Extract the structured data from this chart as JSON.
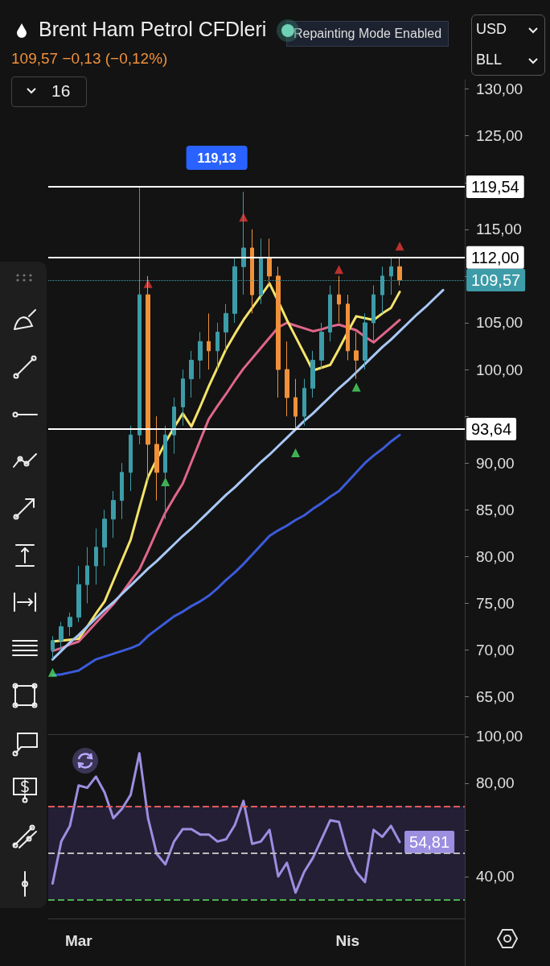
{
  "chart_data": [
    {
      "type": "candlestick",
      "title": "Brent Ham Petrol CFDleri",
      "subtitle": "109,57 −0,13 (−0,12%)",
      "annotations": [
        "Repainting Mode Enabled",
        "16",
        "USD",
        "BLL",
        {
          "text": "119,13",
          "y": 119.54
        }
      ],
      "ohlc": [
        [
          70,
          71.5,
          69,
          71
        ],
        [
          71,
          73,
          70,
          72.5
        ],
        [
          72.5,
          74,
          71.5,
          73.5
        ],
        [
          73.5,
          79,
          73,
          77
        ],
        [
          77,
          81,
          75,
          79
        ],
        [
          79,
          83,
          77,
          81
        ],
        [
          81,
          85,
          79,
          84
        ],
        [
          84,
          87,
          82,
          86
        ],
        [
          86,
          90,
          84,
          89
        ],
        [
          89,
          94,
          87,
          93
        ],
        [
          93,
          119.5,
          92,
          108
        ],
        [
          108,
          110,
          88,
          92
        ],
        [
          92,
          95,
          86,
          89
        ],
        [
          89,
          94,
          84,
          93
        ],
        [
          93,
          97,
          91,
          96
        ],
        [
          96,
          100,
          94,
          99
        ],
        [
          99,
          102,
          97,
          101
        ],
        [
          101,
          104,
          99,
          103
        ],
        [
          103,
          106,
          100,
          102
        ],
        [
          102,
          105,
          100,
          104
        ],
        [
          104,
          107,
          102,
          106
        ],
        [
          106,
          112,
          105,
          111
        ],
        [
          111,
          119,
          108,
          113
        ],
        [
          113,
          115,
          106,
          108
        ],
        [
          108,
          114,
          107,
          112
        ],
        [
          112,
          114,
          109,
          110
        ],
        [
          110,
          111,
          97,
          100
        ],
        [
          100,
          103,
          95,
          97
        ],
        [
          97,
          99,
          93.6,
          95
        ],
        [
          95,
          99,
          94,
          98
        ],
        [
          98,
          102,
          97,
          101
        ],
        [
          101,
          105,
          100,
          104
        ],
        [
          104,
          109,
          103,
          108
        ],
        [
          108,
          110,
          105,
          107
        ],
        [
          107,
          108,
          101,
          102
        ],
        [
          102,
          104,
          99,
          101
        ],
        [
          101,
          106,
          100,
          105
        ],
        [
          105,
          109,
          103,
          108
        ],
        [
          108,
          111,
          106,
          110
        ],
        [
          110,
          112,
          108,
          111
        ],
        [
          111,
          112,
          109,
          109.57
        ],
        null,
        null,
        null,
        null,
        null,
        null,
        null
      ],
      "colors": [
        "#3d9ca8",
        "#3d9ca8",
        "#3d9ca8",
        "#3d9ca8",
        "#3d9ca8",
        "#3d9ca8",
        "#3d9ca8",
        "#3d9ca8",
        "#3d9ca8",
        "#3d9ca8",
        "#3d9ca8",
        "#f0913a",
        "#f0913a",
        "#3d9ca8",
        "#3d9ca8",
        "#3d9ca8",
        "#3d9ca8",
        "#3d9ca8",
        "#f0913a",
        "#3d9ca8",
        "#3d9ca8",
        "#3d9ca8",
        "#3d9ca8",
        "#f0913a",
        "#3d9ca8",
        "#f0913a",
        "#f0913a",
        "#f0913a",
        "#f0913a",
        "#3d9ca8",
        "#3d9ca8",
        "#3d9ca8",
        "#3d9ca8",
        "#f0913a",
        "#f0913a",
        "#f0913a",
        "#3d9ca8",
        "#3d9ca8",
        "#3d9ca8",
        "#3d9ca8",
        "#f0913a",
        null,
        null,
        null,
        null,
        null,
        null,
        null
      ],
      "series": [
        {
          "type": "line",
          "color": "#3b5bdb",
          "values": [
            67.3,
            67.4,
            67.6,
            67.8,
            68.4,
            69,
            69.3,
            69.6,
            69.9,
            70.2,
            70.6,
            71.5,
            72.2,
            72.9,
            73.6,
            74.1,
            74.7,
            75.2,
            75.8,
            76.6,
            77.5,
            78.3,
            79.2,
            80.2,
            81.2,
            82.2,
            82.8,
            83.3,
            83.9,
            84.4,
            85.1,
            85.7,
            86.4,
            87,
            88,
            89,
            90,
            90.8,
            91.5,
            92.3,
            93,
            null,
            null,
            null,
            null,
            null,
            null,
            null
          ]
        },
        {
          "type": "line",
          "color": "#e0668a",
          "values": [
            69.9,
            70.2,
            70.6,
            70.9,
            71.9,
            72.9,
            73.9,
            74.9,
            76.1,
            77.4,
            78.6,
            80.6,
            82.7,
            84.7,
            86.3,
            87.8,
            90.1,
            92.4,
            94.7,
            96.1,
            97.4,
            98.8,
            100.1,
            101.2,
            102.3,
            103.4,
            104.5,
            105,
            104.7,
            104.4,
            104.1,
            104.3,
            104.6,
            104.8,
            104.5,
            104.2,
            103.5,
            102.9,
            103.7,
            104.5,
            105.3,
            null,
            null,
            null,
            null,
            null,
            null,
            null
          ]
        },
        {
          "type": "line",
          "color": "#f5e36a",
          "values": [
            70.9,
            71,
            71.1,
            71.2,
            72.5,
            73.9,
            75.2,
            77.4,
            79.6,
            81.8,
            85.2,
            88.5,
            90.4,
            92.2,
            93.8,
            95.3,
            93.9,
            96,
            98.2,
            100.2,
            102.2,
            103.8,
            105.3,
            106.6,
            107.9,
            109.2,
            107.3,
            105.3,
            103.5,
            101.7,
            99.9,
            100.2,
            100.5,
            102.2,
            104,
            105.7,
            105.5,
            105.3,
            106,
            106.6,
            108.3,
            null,
            null,
            null,
            null,
            null,
            null,
            null
          ]
        },
        {
          "type": "line",
          "color": "#a9c8f5",
          "values": [
            69,
            69.9,
            70.8,
            71.6,
            72.5,
            73.4,
            74.3,
            75.1,
            76,
            76.9,
            77.8,
            78.7,
            79.5,
            80.4,
            81.3,
            82.2,
            83,
            83.9,
            84.8,
            85.7,
            86.6,
            87.4,
            88.3,
            89.2,
            90.1,
            90.9,
            91.8,
            92.7,
            93.6,
            94.5,
            95.3,
            96.2,
            97.1,
            98,
            98.8,
            99.7,
            100.6,
            101.5,
            102.4,
            103.2,
            104.1,
            105,
            105.9,
            106.7,
            107.6,
            108.5,
            null,
            null
          ]
        },
        {
          "type": "scatter",
          "marker": "triangle",
          "color": "#4cd964",
          "values": [
            67.6,
            null,
            null,
            null,
            null,
            null,
            null,
            null,
            null,
            null,
            null,
            null,
            null,
            88,
            null,
            null,
            null,
            null,
            null,
            null,
            null,
            null,
            null,
            null,
            null,
            null,
            null,
            null,
            91.1,
            null,
            null,
            null,
            null,
            null,
            null,
            98.1,
            null,
            null,
            null,
            null,
            null,
            null,
            null,
            null,
            null,
            null,
            null,
            null
          ]
        },
        {
          "type": "scatter",
          "marker": "triangle",
          "color": "#e53935",
          "values": [
            null,
            null,
            null,
            null,
            null,
            null,
            null,
            null,
            null,
            null,
            null,
            109.2,
            null,
            null,
            null,
            null,
            null,
            null,
            null,
            null,
            null,
            null,
            116.3,
            null,
            null,
            null,
            null,
            null,
            null,
            null,
            null,
            null,
            null,
            110.7,
            null,
            null,
            null,
            null,
            null,
            null,
            113.2,
            null,
            null,
            null,
            null,
            null,
            null,
            null
          ]
        }
      ],
      "ref_lines": [
        {
          "axis": "y",
          "value": 119.54,
          "label": "119,54",
          "color": "#ffffff",
          "line_style": "solid"
        },
        {
          "axis": "y",
          "value": 112,
          "label": "112,00",
          "color": "#ffffff",
          "line_style": "solid"
        },
        {
          "axis": "y",
          "value": 93.64,
          "label": "93,64",
          "color": "#ffffff",
          "line_style": "solid"
        },
        {
          "axis": "y",
          "value": 109.57,
          "label": "109,57",
          "color": "#3d9ca8",
          "line_style": "dotted"
        }
      ],
      "ylim": [
        61,
        131
      ],
      "yticks": [
        {
          "value": 65,
          "label": "65,00"
        },
        {
          "value": 70,
          "label": "70,00"
        },
        {
          "value": 75,
          "label": "75,00"
        },
        {
          "value": 80,
          "label": "80,00"
        },
        {
          "value": 85,
          "label": "85,00"
        },
        {
          "value": 90,
          "label": "90,00"
        },
        {
          "value": 95,
          "label": null
        },
        {
          "value": 100,
          "label": "100,00"
        },
        {
          "value": 105,
          "label": "105,00"
        },
        {
          "value": 110,
          "label": null
        },
        {
          "value": 115,
          "label": "115,00"
        },
        {
          "value": 120,
          "label": null
        },
        {
          "value": 125,
          "label": "125,00"
        },
        {
          "value": 130,
          "label": "130,00"
        }
      ],
      "tick_labels": "y",
      "grid": false
    },
    {
      "type": "line",
      "color": "#9c8ee0",
      "categories": [
        null,
        null,
        null,
        "Mar",
        null,
        null,
        null,
        null,
        null,
        null,
        null,
        null,
        null,
        null,
        null,
        null,
        null,
        null,
        null,
        null,
        null,
        null,
        null,
        null,
        null,
        null,
        null,
        null,
        null,
        null,
        null,
        null,
        null,
        null,
        "Nis",
        null,
        null,
        null,
        null,
        null,
        null,
        null,
        null,
        null,
        null,
        null,
        null,
        null
      ],
      "values": [
        37,
        55,
        61.7,
        79,
        78,
        82.8,
        76,
        65,
        69,
        75,
        92.8,
        65,
        49.7,
        45.2,
        55,
        60.3,
        60.3,
        58,
        58,
        55,
        56,
        62,
        72.4,
        54,
        55,
        60,
        40,
        45.9,
        33.1,
        42,
        48,
        56,
        64.1,
        63.4,
        50,
        42,
        37.6,
        60,
        57,
        61.7,
        54.81,
        null,
        null,
        null,
        null,
        null,
        null,
        null
      ],
      "value_labels": [
        null,
        null,
        null,
        null,
        null,
        null,
        null,
        null,
        null,
        null,
        null,
        null,
        null,
        null,
        null,
        null,
        null,
        null,
        null,
        null,
        null,
        null,
        null,
        null,
        null,
        null,
        null,
        null,
        null,
        null,
        null,
        null,
        null,
        null,
        null,
        null,
        null,
        null,
        null,
        null,
        "54,81",
        null,
        null,
        null,
        null,
        null,
        null,
        null
      ],
      "ref_lines": [
        {
          "axis": "y",
          "value": 70,
          "color": "#e05a5a",
          "line_style": "dashed"
        },
        {
          "axis": "y",
          "value": 50,
          "color": "#bbbbbb",
          "line_style": "dashed"
        },
        {
          "axis": "y",
          "value": 30,
          "color": "#4caf50",
          "line_style": "dashed"
        }
      ],
      "bands": [
        {
          "axis": "y",
          "from": 30,
          "to": 70,
          "color": "#241f35"
        }
      ],
      "ylim": [
        22,
        101
      ],
      "yticks": [
        {
          "value": 40,
          "label": "40,00"
        },
        {
          "value": 60,
          "label": null
        },
        {
          "value": 80,
          "label": "80,00"
        },
        {
          "value": 100,
          "label": "100,00"
        }
      ],
      "grid": false
    }
  ]
}
